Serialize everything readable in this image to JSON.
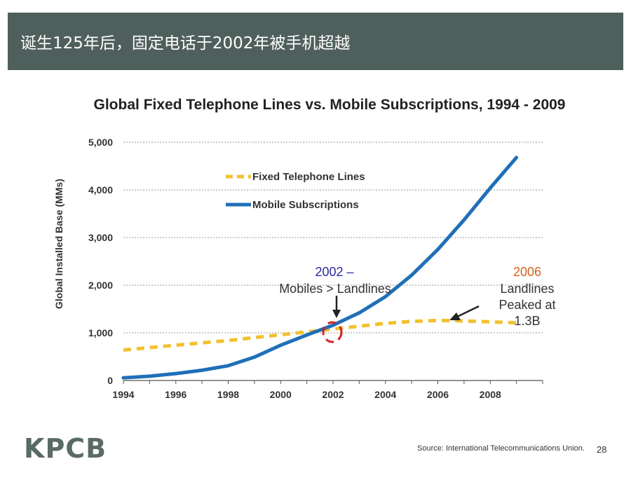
{
  "slide": {
    "title": "诞生125年后，固定电话于2002年被手机超越",
    "logo": "KPCB",
    "source": "Source: International Telecommunications Union.",
    "page_number": "28"
  },
  "chart_data": {
    "type": "line",
    "title": "Global Fixed Telephone Lines vs. Mobile Subscriptions, 1994 - 2009",
    "xlabel": "",
    "ylabel": "Global Installed Base (MMs)",
    "ylim": [
      0,
      5000
    ],
    "y_ticks": [
      0,
      1000,
      2000,
      3000,
      4000,
      5000
    ],
    "y_tick_labels": [
      "0",
      "1,000",
      "2,000",
      "3,000",
      "4,000",
      "5,000"
    ],
    "x_ticks": [
      1994,
      1996,
      1998,
      2000,
      2002,
      2004,
      2006,
      2008
    ],
    "x_tick_labels": [
      "1994",
      "1996",
      "1998",
      "2000",
      "2002",
      "2004",
      "2006",
      "2008"
    ],
    "grid": true,
    "x": [
      1994,
      1995,
      1996,
      1997,
      1998,
      1999,
      2000,
      2001,
      2002,
      2003,
      2004,
      2005,
      2006,
      2007,
      2008,
      2009
    ],
    "series": [
      {
        "name": "Fixed Telephone Lines",
        "style": "dashed",
        "color": "#f2c12e",
        "values": [
          640,
          690,
          740,
          790,
          840,
          900,
          960,
          1020,
          1080,
          1140,
          1200,
          1240,
          1260,
          1250,
          1230,
          1210
        ]
      },
      {
        "name": "Mobile Subscriptions",
        "style": "solid",
        "color": "#1f6fb8",
        "values": [
          56,
          90,
          145,
          215,
          310,
          490,
          740,
          955,
          1160,
          1420,
          1760,
          2210,
          2750,
          3370,
          4040,
          4680
        ]
      }
    ],
    "legend": {
      "position": "top-left-inside",
      "items": [
        "Fixed Telephone Lines",
        "Mobile Subscriptions"
      ]
    },
    "annotations": [
      {
        "year_line1": "2002 –",
        "text_line2": "Mobiles > Landlines",
        "color": "#2b2ba0"
      },
      {
        "year_line1": "2006",
        "text_line2": "Landlines",
        "text_line3": "Peaked at",
        "text_line4": "1.3B",
        "color": "#d4621c"
      }
    ]
  }
}
